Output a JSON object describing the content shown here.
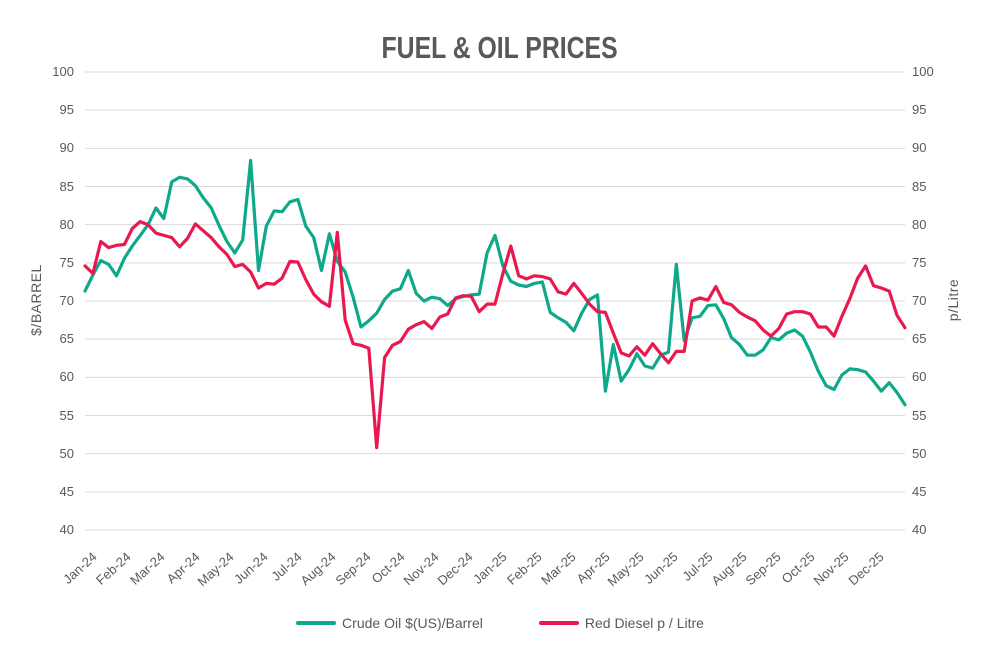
{
  "title": "FUEL & OIL PRICES",
  "axes": {
    "left_title": "$/BARREL",
    "right_title": "p/Litre"
  },
  "legend": {
    "items": [
      {
        "label": "Crude Oil $(US)/Barrel",
        "color": "#0EA88A"
      },
      {
        "label": "Red Diesel p / Litre",
        "color": "#E9194F"
      }
    ]
  },
  "colors": {
    "grid": "#D9D9D9",
    "text": "#595959",
    "background": "#FFFFFF",
    "crude_oil": "#0EA88A",
    "red_diesel": "#E9194F"
  },
  "chart_data": {
    "type": "line",
    "title": "FUEL & OIL PRICES",
    "xlabel": "",
    "ylabel_left": "$/BARREL",
    "ylabel_right": "p/Litre",
    "ylim": [
      40,
      100
    ],
    "y_ticks": [
      100,
      95,
      90,
      85,
      80,
      75,
      70,
      65,
      60,
      55,
      50,
      45,
      40
    ],
    "grid": "horizontal",
    "legend_position": "bottom",
    "x_unit": "weekly",
    "x_tick_labels": [
      "Jan-24",
      "Feb-24",
      "Mar-24",
      "Apr-24",
      "May-24",
      "Jun-24",
      "Jul-24",
      "Aug-24",
      "Sep-24",
      "Oct-24",
      "Nov-24",
      "Dec-24",
      "Jan-25",
      "Feb-25",
      "Mar-25",
      "Apr-25",
      "May-25",
      "Jun-25",
      "Jul-25",
      "Aug-25",
      "Sep-25",
      "Oct-25",
      "Nov-25",
      "Dec-25"
    ],
    "series": [
      {
        "name": "Crude Oil $(US)/Barrel",
        "color": "#0EA88A",
        "values": [
          71.3,
          73.4,
          75.3,
          74.8,
          73.3,
          75.6,
          77.2,
          78.6,
          80.0,
          82.2,
          80.8,
          85.6,
          86.2,
          86.0,
          85.1,
          83.5,
          82.2,
          79.9,
          77.8,
          76.3,
          78.0,
          88.4,
          74.0,
          79.8,
          81.8,
          81.7,
          83.0,
          83.3,
          79.8,
          78.3,
          74.0,
          78.8,
          75.2,
          73.8,
          70.5,
          66.6,
          67.4,
          68.4,
          70.2,
          71.3,
          71.6,
          74.0,
          71.0,
          70.0,
          70.5,
          70.3,
          69.4,
          70.3,
          70.6,
          70.8,
          70.9,
          76.3,
          78.6,
          74.6,
          72.6,
          72.1,
          71.9,
          72.3,
          72.5,
          68.5,
          67.8,
          67.2,
          66.1,
          68.4,
          70.2,
          70.8,
          58.2,
          64.3,
          59.5,
          61.0,
          63.1,
          61.5,
          61.2,
          62.9,
          63.3,
          74.8,
          64.8,
          67.8,
          68.0,
          69.4,
          69.5,
          67.7,
          65.2,
          64.3,
          62.9,
          62.9,
          63.6,
          65.2,
          64.9,
          65.8,
          66.2,
          65.4,
          63.3,
          60.8,
          58.9,
          58.4,
          60.3,
          61.1,
          61.0,
          60.7,
          59.5,
          58.2,
          59.3,
          58.0,
          56.4
        ]
      },
      {
        "name": "Red Diesel p / Litre",
        "color": "#E9194F",
        "values": [
          74.6,
          73.6,
          77.8,
          77.0,
          77.3,
          77.4,
          79.5,
          80.4,
          80.0,
          78.9,
          78.6,
          78.3,
          77.1,
          78.2,
          80.1,
          79.2,
          78.3,
          77.1,
          76.1,
          74.5,
          74.8,
          73.8,
          71.7,
          72.3,
          72.2,
          73.0,
          75.2,
          75.1,
          72.8,
          70.9,
          69.9,
          69.3,
          79.0,
          67.5,
          64.4,
          64.2,
          63.8,
          50.8,
          62.6,
          64.2,
          64.7,
          66.3,
          66.9,
          67.3,
          66.4,
          67.9,
          68.3,
          70.4,
          70.7,
          70.6,
          68.6,
          69.6,
          69.6,
          73.6,
          77.2,
          73.3,
          72.9,
          73.3,
          73.2,
          72.9,
          71.2,
          70.9,
          72.3,
          71.0,
          69.6,
          68.6,
          68.5,
          65.8,
          63.2,
          62.8,
          64.0,
          62.9,
          64.4,
          63.1,
          61.9,
          63.4,
          63.4,
          70.0,
          70.4,
          70.1,
          71.9,
          69.8,
          69.5,
          68.5,
          67.9,
          67.4,
          66.2,
          65.4,
          66.4,
          68.3,
          68.6,
          68.6,
          68.3,
          66.6,
          66.6,
          65.4,
          68.0,
          70.3,
          73.0,
          74.6,
          72.0,
          71.7,
          71.3,
          68.1,
          66.5
        ]
      }
    ]
  }
}
